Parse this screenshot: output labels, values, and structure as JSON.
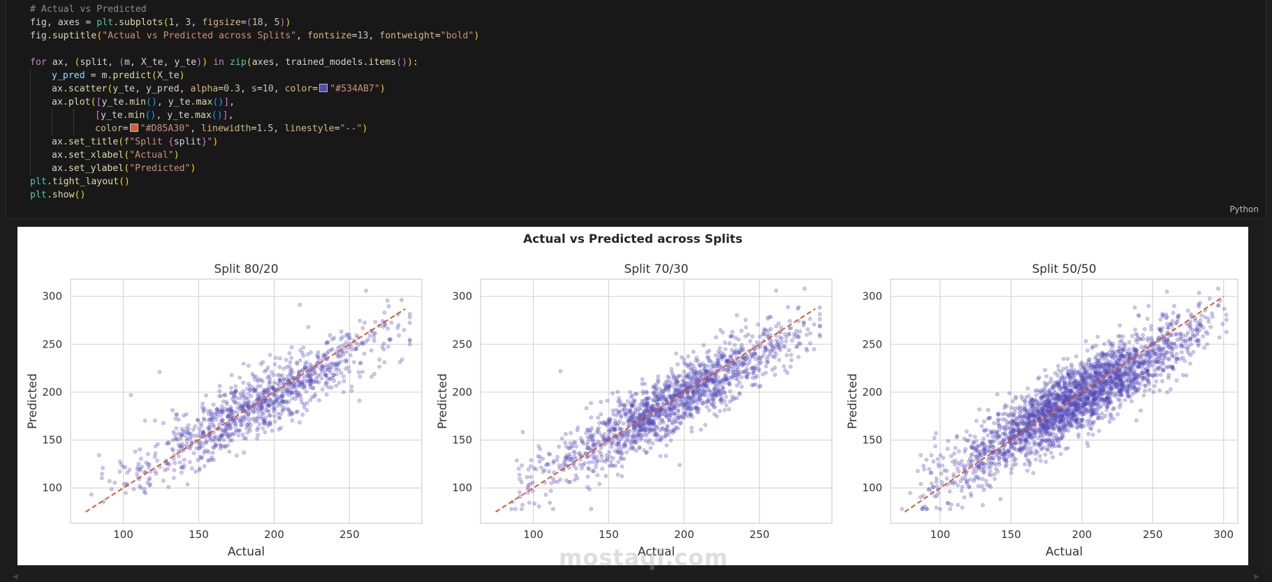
{
  "code_cell": {
    "language": "Python",
    "lines": [
      {
        "indent": 0,
        "tokens": [
          [
            "cm",
            "# Actual vs Predicted"
          ]
        ]
      },
      {
        "indent": 0,
        "tokens": [
          [
            "op",
            "fig, axes = "
          ],
          [
            "fn",
            "plt"
          ],
          [
            "op",
            "."
          ],
          [
            "mt",
            "subplots"
          ],
          [
            "br1",
            "("
          ],
          [
            "nu",
            "1"
          ],
          [
            "op",
            ", "
          ],
          [
            "nu",
            "3"
          ],
          [
            "op",
            ", "
          ],
          [
            "pa",
            "figsize"
          ],
          [
            "op",
            "="
          ],
          [
            "br2",
            "("
          ],
          [
            "nu",
            "18"
          ],
          [
            "op",
            ", "
          ],
          [
            "nu",
            "5"
          ],
          [
            "br2",
            ")"
          ],
          [
            "br1",
            ")"
          ]
        ]
      },
      {
        "indent": 0,
        "tokens": [
          [
            "op",
            "fig."
          ],
          [
            "mt",
            "suptitle"
          ],
          [
            "br1",
            "("
          ],
          [
            "st",
            "\"Actual vs Predicted across Splits\""
          ],
          [
            "op",
            ", "
          ],
          [
            "pa",
            "fontsize"
          ],
          [
            "op",
            "="
          ],
          [
            "nu",
            "13"
          ],
          [
            "op",
            ", "
          ],
          [
            "pa",
            "fontweight"
          ],
          [
            "op",
            "="
          ],
          [
            "st",
            "\"bold\""
          ],
          [
            "br1",
            ")"
          ]
        ]
      },
      {
        "indent": 0,
        "tokens": []
      },
      {
        "indent": 0,
        "tokens": [
          [
            "kw",
            "for"
          ],
          [
            "op",
            " ax, "
          ],
          [
            "br1",
            "("
          ],
          [
            "op",
            "split, "
          ],
          [
            "br2",
            "("
          ],
          [
            "op",
            "m, X_te, y_te"
          ],
          [
            "br2",
            ")"
          ],
          [
            "br1",
            ")"
          ],
          [
            "op",
            " "
          ],
          [
            "kw",
            "in"
          ],
          [
            "op",
            " "
          ],
          [
            "fn",
            "zip"
          ],
          [
            "br1",
            "("
          ],
          [
            "op",
            "axes, trained_models."
          ],
          [
            "mt",
            "items"
          ],
          [
            "br2",
            "()"
          ],
          [
            "br1",
            ")"
          ],
          [
            "op",
            ":"
          ]
        ]
      },
      {
        "indent": 1,
        "tokens": [
          [
            "vr",
            "y_pred"
          ],
          [
            "op",
            " = m."
          ],
          [
            "mt",
            "predict"
          ],
          [
            "br1",
            "("
          ],
          [
            "op",
            "X_te"
          ],
          [
            "br1",
            ")"
          ]
        ]
      },
      {
        "indent": 1,
        "tokens": [
          [
            "op",
            "ax."
          ],
          [
            "mt",
            "scatter"
          ],
          [
            "br1",
            "("
          ],
          [
            "op",
            "y_te, y_pred, "
          ],
          [
            "pa",
            "alpha"
          ],
          [
            "op",
            "="
          ],
          [
            "nu",
            "0.3"
          ],
          [
            "op",
            ", "
          ],
          [
            "pa",
            "s"
          ],
          [
            "op",
            "="
          ],
          [
            "nu",
            "10"
          ],
          [
            "op",
            ", "
          ],
          [
            "pa",
            "color"
          ],
          [
            "op",
            "="
          ],
          [
            "sw",
            "#534AB7"
          ],
          [
            "st",
            "\"#534AB7\""
          ],
          [
            "br1",
            ")"
          ]
        ]
      },
      {
        "indent": 1,
        "tokens": [
          [
            "op",
            "ax."
          ],
          [
            "mt",
            "plot"
          ],
          [
            "br1",
            "("
          ],
          [
            "br2",
            "["
          ],
          [
            "op",
            "y_te."
          ],
          [
            "mt",
            "min"
          ],
          [
            "br3",
            "()"
          ],
          [
            "op",
            ", y_te."
          ],
          [
            "mt",
            "max"
          ],
          [
            "br3",
            "()"
          ],
          [
            "br2",
            "]"
          ],
          [
            "op",
            ","
          ]
        ]
      },
      {
        "indent": 3,
        "tokens": [
          [
            "br2",
            "["
          ],
          [
            "op",
            "y_te."
          ],
          [
            "mt",
            "min"
          ],
          [
            "br3",
            "()"
          ],
          [
            "op",
            ", y_te."
          ],
          [
            "mt",
            "max"
          ],
          [
            "br3",
            "()"
          ],
          [
            "br2",
            "]"
          ],
          [
            "op",
            ","
          ]
        ]
      },
      {
        "indent": 3,
        "tokens": [
          [
            "pa",
            "color"
          ],
          [
            "op",
            "="
          ],
          [
            "sw",
            "#D85A30"
          ],
          [
            "st",
            "\"#D85A30\""
          ],
          [
            "op",
            ", "
          ],
          [
            "pa",
            "linewidth"
          ],
          [
            "op",
            "="
          ],
          [
            "nu",
            "1.5"
          ],
          [
            "op",
            ", "
          ],
          [
            "pa",
            "linestyle"
          ],
          [
            "op",
            "="
          ],
          [
            "st",
            "\"--\""
          ],
          [
            "br1",
            ")"
          ]
        ]
      },
      {
        "indent": 1,
        "tokens": [
          [
            "op",
            "ax."
          ],
          [
            "mt",
            "set_title"
          ],
          [
            "br1",
            "("
          ],
          [
            "pa",
            "f"
          ],
          [
            "st",
            "\"Split "
          ],
          [
            "br2",
            "{"
          ],
          [
            "op",
            "split"
          ],
          [
            "br2",
            "}"
          ],
          [
            "st",
            "\""
          ],
          [
            "br1",
            ")"
          ]
        ]
      },
      {
        "indent": 1,
        "tokens": [
          [
            "op",
            "ax."
          ],
          [
            "mt",
            "set_xlabel"
          ],
          [
            "br1",
            "("
          ],
          [
            "st",
            "\"Actual\""
          ],
          [
            "br1",
            ")"
          ]
        ]
      },
      {
        "indent": 1,
        "tokens": [
          [
            "op",
            "ax."
          ],
          [
            "mt",
            "set_ylabel"
          ],
          [
            "br1",
            "("
          ],
          [
            "st",
            "\"Predicted\""
          ],
          [
            "br1",
            ")"
          ]
        ]
      },
      {
        "indent": 0,
        "tokens": [
          [
            "fn",
            "plt"
          ],
          [
            "op",
            "."
          ],
          [
            "mt",
            "tight_layout"
          ],
          [
            "br1",
            "()"
          ]
        ]
      },
      {
        "indent": 0,
        "tokens": [
          [
            "fn",
            "plt"
          ],
          [
            "op",
            "."
          ],
          [
            "mt",
            "show"
          ],
          [
            "br1",
            "()"
          ]
        ]
      }
    ]
  },
  "colors": {
    "scatter": "#534AB7",
    "reference_line": "#D85A30",
    "grid": "#d6d6d6",
    "axis_text": "#333333"
  },
  "figure": {
    "suptitle": "Actual vs Predicted across Splits"
  },
  "chart_data": [
    {
      "type": "scatter",
      "title": "Split 80/20",
      "xlabel": "Actual",
      "ylabel": "Predicted",
      "xlim": [
        65,
        298
      ],
      "ylim": [
        63,
        318
      ],
      "xticks": [
        100,
        150,
        200,
        250
      ],
      "yticks": [
        100,
        150,
        200,
        250,
        300
      ],
      "grid": true,
      "line": {
        "x": [
          75,
          287
        ],
        "y": [
          75,
          287
        ],
        "style": "dashed"
      },
      "approx_point_count": 1000,
      "trend": {
        "slope": 0.85,
        "intercept": 26,
        "noise_sd": 17
      },
      "outliers": [
        [
          261,
          306
        ],
        [
          124,
          221
        ],
        [
          105,
          197
        ]
      ]
    },
    {
      "type": "scatter",
      "title": "Split 70/30",
      "xlabel": "Actual",
      "ylabel": "Predicted",
      "xlim": [
        65,
        298
      ],
      "ylim": [
        63,
        318
      ],
      "xticks": [
        100,
        150,
        200,
        250
      ],
      "yticks": [
        100,
        150,
        200,
        250,
        300
      ],
      "grid": true,
      "line": {
        "x": [
          75,
          287
        ],
        "y": [
          75,
          287
        ],
        "style": "dashed"
      },
      "approx_point_count": 1500,
      "trend": {
        "slope": 0.85,
        "intercept": 26,
        "noise_sd": 17
      },
      "outliers": [
        [
          261,
          306
        ],
        [
          118,
          222
        ],
        [
          197,
          124
        ]
      ]
    },
    {
      "type": "scatter",
      "title": "Split 50/50",
      "xlabel": "Actual",
      "ylabel": "Predicted",
      "xlim": [
        65,
        310
      ],
      "ylim": [
        63,
        318
      ],
      "xticks": [
        100,
        150,
        200,
        250,
        300
      ],
      "yticks": [
        100,
        150,
        200,
        250,
        300
      ],
      "grid": true,
      "line": {
        "x": [
          75,
          300
        ],
        "y": [
          75,
          300
        ],
        "style": "dashed"
      },
      "approx_point_count": 2500,
      "trend": {
        "slope": 0.85,
        "intercept": 26,
        "noise_sd": 18
      },
      "outliers": [
        [
          260,
          305
        ],
        [
          247,
          290
        ],
        [
          130,
          82
        ]
      ]
    }
  ],
  "watermark": {
    "text": "mostaql.com"
  }
}
